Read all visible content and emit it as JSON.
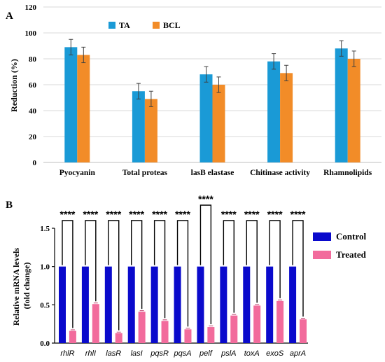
{
  "chart_data": [
    {
      "panel_label": "A",
      "type": "bar",
      "categories": [
        "Pyocyanin",
        "Total proteas",
        "lasB elastase",
        "Chitinase activity",
        "Rhamnolipids"
      ],
      "series": [
        {
          "name": "TA",
          "color": "#1a9ad6",
          "values": [
            89,
            55,
            68,
            78,
            88
          ],
          "errors": [
            6,
            6,
            6,
            6,
            6
          ]
        },
        {
          "name": "BCL",
          "color": "#f28c28",
          "values": [
            83,
            49,
            60,
            69,
            80
          ],
          "errors": [
            6,
            6,
            6,
            6,
            6
          ]
        }
      ],
      "ylabel": "Reduction (%)",
      "ylim": [
        0,
        120
      ],
      "yticks": [
        "0",
        "20",
        "40",
        "60",
        "80",
        "100",
        "120"
      ],
      "grid": true,
      "legend": "top-center"
    },
    {
      "panel_label": "B",
      "type": "bar",
      "categories": [
        "rhlR",
        "rhlI",
        "lasR",
        "lasI",
        "pqsR",
        "pqsA",
        "pelf",
        "pslA",
        "toxA",
        "exoS",
        "aprA"
      ],
      "series": [
        {
          "name": "Control",
          "color": "#0a0acc",
          "values": [
            1,
            1,
            1,
            1,
            1,
            1,
            1,
            1,
            1,
            1,
            1
          ]
        },
        {
          "name": "Treated",
          "color": "#f26b9c",
          "values": [
            0.16,
            0.51,
            0.13,
            0.41,
            0.29,
            0.18,
            0.21,
            0.36,
            0.49,
            0.55,
            0.31
          ]
        }
      ],
      "significance": "****",
      "ylabel": "Relative mRNA levels\n(fold change)",
      "ylim": [
        0,
        1.5
      ],
      "yticks": [
        "0.0",
        "0.5",
        "1.0",
        "1.5"
      ],
      "grid": false,
      "legend": "right"
    }
  ]
}
